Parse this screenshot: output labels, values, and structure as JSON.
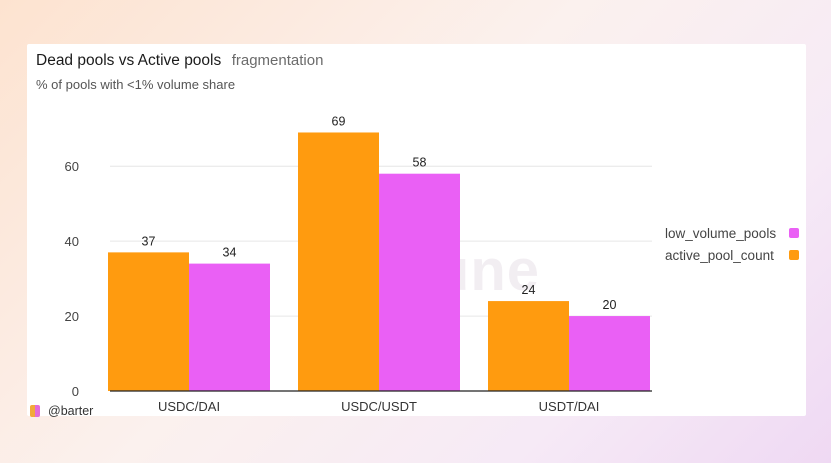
{
  "card": {
    "title": "Dead pools vs Active pools",
    "title_suffix": "fragmentation",
    "caption": "% of pools with <1% volume share"
  },
  "watermark": {
    "text": "Dune",
    "logo_icon": "dune-logo-icon"
  },
  "footer": {
    "handle": "@barter",
    "icon": "barter-logo-icon"
  },
  "colors": {
    "active_pool_count": "#ff9b0f",
    "low_volume_pools": "#ea60f5",
    "grid": "#e6e6e6"
  },
  "chart_data": {
    "type": "bar",
    "categories": [
      "USDC/DAI",
      "USDC/USDT",
      "USDT/DAI"
    ],
    "series": [
      {
        "name": "active_pool_count",
        "values": [
          37,
          69,
          24
        ],
        "color": "#ff9b0f"
      },
      {
        "name": "low_volume_pools",
        "values": [
          34,
          58,
          20
        ],
        "color": "#ea60f5"
      }
    ],
    "title": "Dead pools vs Active pools",
    "subtitle": "% of pools with <1% volume share",
    "xlabel": "",
    "ylabel": "",
    "ylim": [
      0,
      75
    ],
    "yticks": [
      0,
      20,
      40,
      60
    ],
    "grid": true,
    "legend": {
      "position": "right",
      "entries": [
        "low_volume_pools",
        "active_pool_count"
      ]
    },
    "data_labels": true
  }
}
